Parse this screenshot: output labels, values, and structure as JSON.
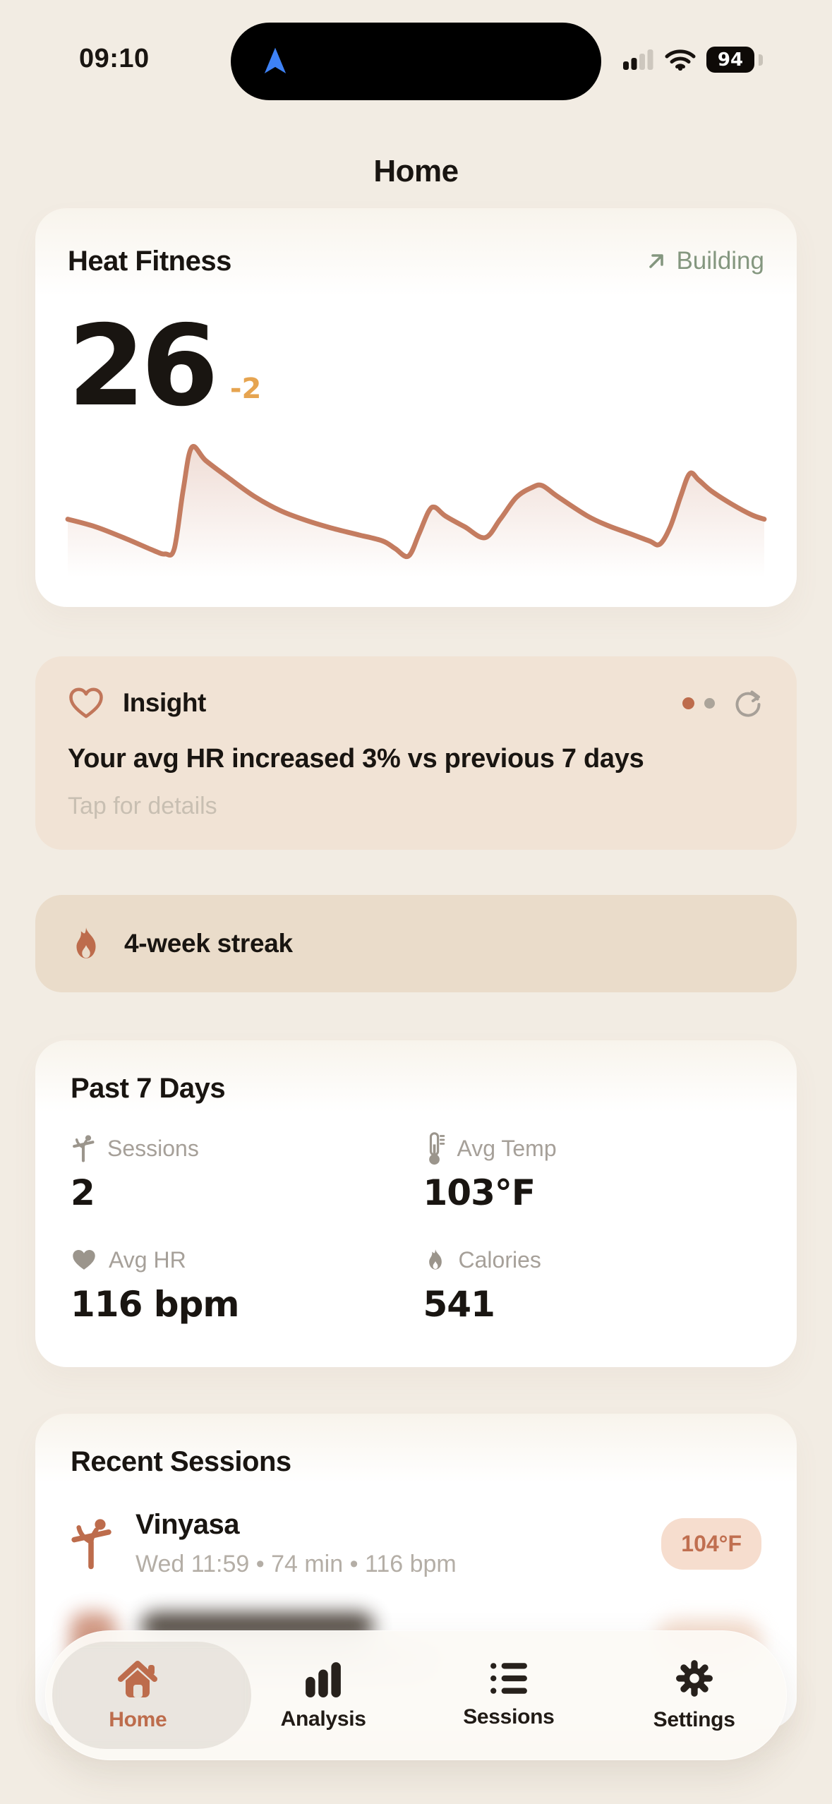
{
  "status_bar": {
    "time": "09:10",
    "battery_percent": "94",
    "signal_icon": "cellular-signal",
    "wifi_icon": "wifi",
    "island_icon": "navigation-arrow"
  },
  "header": {
    "title": "Home"
  },
  "hero": {
    "title": "Heat Fitness",
    "status_icon": "arrow-up-right",
    "status_label": "Building",
    "score": "26",
    "delta": "-2"
  },
  "insight": {
    "icon": "heart-outline",
    "title": "Insight",
    "body": "Your avg HR increased 3% vs previous 7 days",
    "hint": "Tap for details",
    "pagination": {
      "dots": 2,
      "active_index": 0
    },
    "refresh_icon": "refresh"
  },
  "streak": {
    "icon": "flame",
    "label": "4-week streak"
  },
  "stats": {
    "title": "Past 7 Days",
    "items": [
      {
        "icon": "yoga-pose",
        "label": "Sessions",
        "value": "2"
      },
      {
        "icon": "thermometer",
        "label": "Avg Temp",
        "value": "103°F"
      },
      {
        "icon": "heart-filled",
        "label": "Avg HR",
        "value": "116 bpm"
      },
      {
        "icon": "flame",
        "label": "Calories",
        "value": "541"
      }
    ]
  },
  "recent": {
    "title": "Recent Sessions",
    "sessions": [
      {
        "icon": "yoga-pose",
        "name": "Vinyasa",
        "meta": "Wed 11:59 • 74 min • 116 bpm",
        "temp_badge": "104°F"
      }
    ]
  },
  "tab_bar": {
    "items": [
      {
        "icon": "home",
        "label": "Home",
        "active": true
      },
      {
        "icon": "bar-chart",
        "label": "Analysis",
        "active": false
      },
      {
        "icon": "list",
        "label": "Sessions",
        "active": false
      },
      {
        "icon": "gear",
        "label": "Settings",
        "active": false
      }
    ]
  },
  "chart_data": {
    "type": "area",
    "title": "Heat Fitness trend sparkline",
    "xlabel": "",
    "ylabel": "",
    "axes_visible": false,
    "legend": null,
    "y_range_normalized": [
      0,
      1
    ],
    "points": [
      [
        0.0,
        0.34
      ],
      [
        0.04,
        0.27
      ],
      [
        0.084,
        0.16
      ],
      [
        0.124,
        0.05
      ],
      [
        0.14,
        0.02
      ],
      [
        0.153,
        0.07
      ],
      [
        0.166,
        0.62
      ],
      [
        0.178,
        1.0
      ],
      [
        0.198,
        0.88
      ],
      [
        0.231,
        0.72
      ],
      [
        0.268,
        0.55
      ],
      [
        0.305,
        0.42
      ],
      [
        0.342,
        0.33
      ],
      [
        0.378,
        0.26
      ],
      [
        0.415,
        0.2
      ],
      [
        0.452,
        0.14
      ],
      [
        0.47,
        0.07
      ],
      [
        0.489,
        0.0
      ],
      [
        0.504,
        0.2
      ],
      [
        0.518,
        0.41
      ],
      [
        0.527,
        0.45
      ],
      [
        0.542,
        0.37
      ],
      [
        0.57,
        0.27
      ],
      [
        0.599,
        0.17
      ],
      [
        0.621,
        0.34
      ],
      [
        0.644,
        0.54
      ],
      [
        0.666,
        0.63
      ],
      [
        0.681,
        0.65
      ],
      [
        0.703,
        0.55
      ],
      [
        0.746,
        0.37
      ],
      [
        0.776,
        0.28
      ],
      [
        0.806,
        0.21
      ],
      [
        0.835,
        0.14
      ],
      [
        0.85,
        0.11
      ],
      [
        0.865,
        0.27
      ],
      [
        0.88,
        0.55
      ],
      [
        0.893,
        0.76
      ],
      [
        0.906,
        0.7
      ],
      [
        0.924,
        0.6
      ],
      [
        0.953,
        0.48
      ],
      [
        0.982,
        0.38
      ],
      [
        1.0,
        0.34
      ]
    ]
  },
  "colors": {
    "page_bg": "#f2ece3",
    "ink": "#191511",
    "accent": "#bd6c4c",
    "chart_line": "#c47c60",
    "amber": "#e6a450",
    "sage": "#84977f",
    "insight_bg": "#f1e3d5",
    "streak_bg": "#eadcca",
    "badge_bg": "#f6ddce",
    "badge_text": "#c06f50",
    "label_gray": "#a6a099",
    "meta_gray": "#b4aea6",
    "hint_gray": "#c8bfb2",
    "tabbar_bg": "rgba(252,250,245,0.92)"
  }
}
